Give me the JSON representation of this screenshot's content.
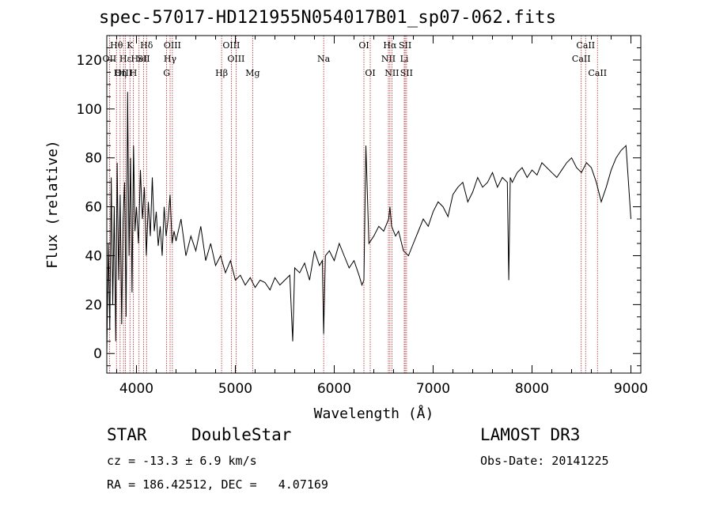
{
  "title": "spec-57017-HD121955N054017B01_sp07-062.fits",
  "info": {
    "class": "STAR",
    "subclass": "DoubleStar",
    "survey": "LAMOST DR3",
    "cz": "cz = -13.3 ± 6.9 km/s",
    "obs_date": "Obs-Date: 20141225",
    "radec": "RA = 186.42512, DEC =   4.07169"
  },
  "chart_data": {
    "type": "line",
    "title": "spec-57017-HD121955N054017B01_sp07-062.fits",
    "xlabel": "Wavelength (Å)",
    "ylabel": "Flux (relative)",
    "xlim": [
      3700,
      9100
    ],
    "ylim": [
      -8,
      130
    ],
    "xticks": [
      4000,
      5000,
      6000,
      7000,
      8000,
      9000
    ],
    "yticks": [
      0,
      20,
      40,
      60,
      80,
      100,
      120
    ],
    "grid": false,
    "line_color": "#000000",
    "marker_color": "#b22222",
    "spectral_lines": [
      {
        "label": "Hθ",
        "x": 3798,
        "row": 0
      },
      {
        "label": "K",
        "x": 3934,
        "row": 0
      },
      {
        "label": "Hδ",
        "x": 4102,
        "row": 0
      },
      {
        "label": "OIII",
        "x": 4363,
        "row": 0
      },
      {
        "label": "OIII",
        "x": 4959,
        "row": 0
      },
      {
        "label": "OI",
        "x": 6300,
        "row": 0
      },
      {
        "label": "Hα",
        "x": 6563,
        "row": 0
      },
      {
        "label": "SII",
        "x": 6717,
        "row": 0
      },
      {
        "label": "CaII",
        "x": 8542,
        "row": 0
      },
      {
        "label": "OII",
        "x": 3727,
        "row": 1
      },
      {
        "label": "Hε",
        "x": 3889,
        "row": 1
      },
      {
        "label": "HeI",
        "x": 4026,
        "row": 1
      },
      {
        "label": "SII",
        "x": 4072,
        "row": 1
      },
      {
        "label": "Hγ",
        "x": 4340,
        "row": 1
      },
      {
        "label": "OIII",
        "x": 5007,
        "row": 1
      },
      {
        "label": "Na",
        "x": 5893,
        "row": 1
      },
      {
        "label": "NII",
        "x": 6548,
        "row": 1
      },
      {
        "label": "Li",
        "x": 6708,
        "row": 1
      },
      {
        "label": "CaII",
        "x": 8498,
        "row": 1
      },
      {
        "label": "OIII",
        "x": 3869,
        "row": 2
      },
      {
        "label": "Hη",
        "x": 3835,
        "row": 2
      },
      {
        "label": "H",
        "x": 3968,
        "row": 2
      },
      {
        "label": "G",
        "x": 4305,
        "row": 2
      },
      {
        "label": "Hβ",
        "x": 4861,
        "row": 2
      },
      {
        "label": "Mg",
        "x": 5175,
        "row": 2
      },
      {
        "label": "OI",
        "x": 6364,
        "row": 2
      },
      {
        "label": "NII",
        "x": 6583,
        "row": 2
      },
      {
        "label": "SII",
        "x": 6731,
        "row": 2
      },
      {
        "label": "CaII",
        "x": 8662,
        "row": 2
      }
    ],
    "series": [
      {
        "x": [
          3700,
          3715,
          3730,
          3745,
          3760,
          3775,
          3790,
          3805,
          3820,
          3835,
          3850,
          3865,
          3880,
          3895,
          3910,
          3925,
          3940,
          3955,
          3970,
          3985,
          4000,
          4020,
          4040,
          4060,
          4080,
          4100,
          4120,
          4140,
          4160,
          4180,
          4200,
          4220,
          4240,
          4260,
          4280,
          4300,
          4320,
          4340,
          4360,
          4380,
          4400,
          4450,
          4500,
          4550,
          4600,
          4650,
          4700,
          4750,
          4800,
          4850,
          4900,
          4950,
          5000,
          5050,
          5100,
          5150,
          5200,
          5250,
          5300,
          5350,
          5400,
          5450,
          5500,
          5550,
          5580,
          5600,
          5650,
          5700,
          5750,
          5800,
          5850,
          5880,
          5893,
          5910,
          5950,
          6000,
          6050,
          6100,
          6150,
          6200,
          6250,
          6280,
          6300,
          6320,
          6350,
          6400,
          6450,
          6500,
          6550,
          6563,
          6580,
          6620,
          6650,
          6700,
          6750,
          6800,
          6850,
          6900,
          6950,
          7000,
          7050,
          7100,
          7150,
          7200,
          7250,
          7300,
          7350,
          7400,
          7450,
          7500,
          7550,
          7600,
          7650,
          7700,
          7750,
          7765,
          7780,
          7800,
          7850,
          7900,
          7950,
          8000,
          8050,
          8100,
          8150,
          8200,
          8250,
          8300,
          8350,
          8400,
          8450,
          8500,
          8550,
          8600,
          8650,
          8700,
          8750,
          8800,
          8850,
          8900,
          8950,
          9000
        ],
        "y": [
          0,
          45,
          10,
          72,
          20,
          60,
          5,
          78,
          30,
          65,
          12,
          55,
          70,
          15,
          107,
          40,
          80,
          25,
          85,
          50,
          60,
          45,
          75,
          55,
          68,
          40,
          62,
          48,
          72,
          50,
          58,
          44,
          52,
          40,
          60,
          48,
          55,
          65,
          45,
          50,
          46,
          55,
          40,
          48,
          42,
          52,
          38,
          45,
          36,
          40,
          33,
          38,
          30,
          32,
          28,
          31,
          27,
          30,
          29,
          26,
          31,
          28,
          30,
          32,
          5,
          35,
          33,
          37,
          30,
          42,
          36,
          38,
          8,
          40,
          42,
          38,
          45,
          40,
          35,
          38,
          32,
          28,
          30,
          85,
          45,
          48,
          52,
          50,
          55,
          60,
          52,
          48,
          50,
          42,
          40,
          45,
          50,
          55,
          52,
          58,
          62,
          60,
          56,
          65,
          68,
          70,
          62,
          66,
          72,
          68,
          70,
          74,
          68,
          72,
          70,
          30,
          72,
          70,
          74,
          76,
          72,
          75,
          73,
          78,
          76,
          74,
          72,
          75,
          78,
          80,
          76,
          74,
          78,
          76,
          70,
          62,
          68,
          75,
          80,
          83,
          85,
          55
        ]
      }
    ]
  }
}
